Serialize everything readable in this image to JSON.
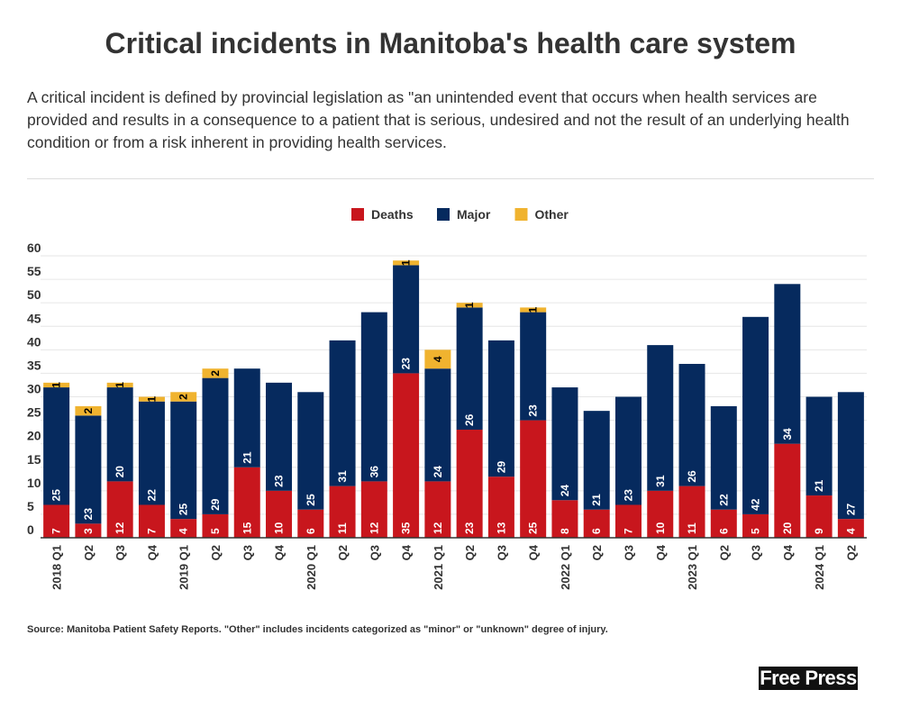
{
  "title": "Critical incidents in Manitoba's health care system",
  "subtitle": "A critical incident is defined by provincial legislation as \"an unintended event that occurs when health services are provided and results in a consequence to a patient that is serious, undesired and not the result of an underlying health condition or from a risk inherent in providing health services.",
  "source": "Source: Manitoba Patient Safety Reports.  \"Other\" includes incidents categorized as \"minor\" or \"unknown\" degree of injury.",
  "logo": "Free Press",
  "chart_data": {
    "type": "bar",
    "stacked": true,
    "title": "Critical incidents in Manitoba's health care system",
    "xlabel": "",
    "ylabel": "",
    "ylim": [
      0,
      60
    ],
    "yticks": [
      0,
      5,
      10,
      15,
      20,
      25,
      30,
      35,
      40,
      45,
      50,
      55,
      60
    ],
    "grid": true,
    "legend": "top-center",
    "categories": [
      "2018 Q1",
      "Q2",
      "Q3",
      "Q4",
      "2019 Q1",
      "Q2",
      "Q3",
      "Q4",
      "2020 Q1",
      "Q2",
      "Q3",
      "Q4",
      "2021 Q1",
      "Q2",
      "Q3",
      "Q4",
      "2022 Q1",
      "Q2",
      "Q3",
      "Q4",
      "2023 Q1",
      "Q2",
      "Q3",
      "Q4",
      "2024 Q1",
      "Q2"
    ],
    "series": [
      {
        "name": "Deaths",
        "color": "#c8161d",
        "values": [
          7,
          3,
          12,
          7,
          4,
          5,
          15,
          10,
          6,
          11,
          12,
          35,
          12,
          23,
          13,
          25,
          8,
          6,
          7,
          10,
          11,
          6,
          5,
          20,
          9,
          4
        ]
      },
      {
        "name": "Major",
        "color": "#062a5e",
        "values": [
          25,
          23,
          20,
          22,
          25,
          29,
          21,
          23,
          25,
          31,
          36,
          23,
          24,
          26,
          29,
          23,
          24,
          21,
          23,
          31,
          26,
          22,
          42,
          34,
          21,
          27
        ]
      },
      {
        "name": "Other",
        "color": "#f0b32f",
        "values": [
          1,
          2,
          1,
          1,
          2,
          2,
          0,
          0,
          0,
          0,
          0,
          1,
          4,
          1,
          0,
          1,
          0,
          0,
          0,
          0,
          0,
          0,
          0,
          0,
          0,
          0
        ]
      }
    ]
  }
}
